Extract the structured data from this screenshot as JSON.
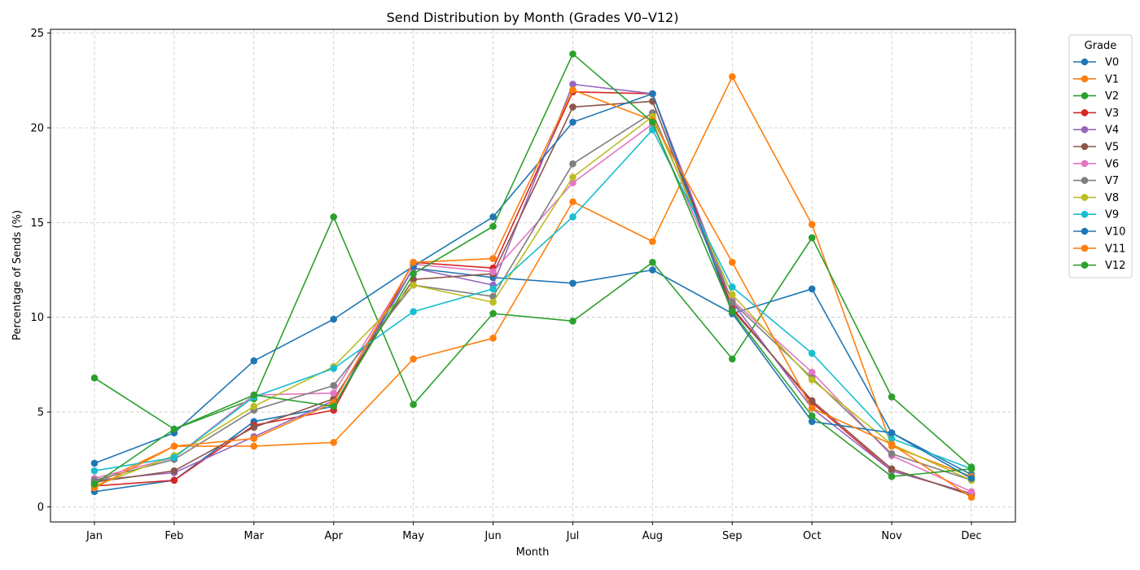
{
  "chart_data": {
    "type": "line",
    "title": "Send Distribution by Month (Grades V0–V12)",
    "xlabel": "Month",
    "ylabel": "Percentage of Sends (%)",
    "categories": [
      "Jan",
      "Feb",
      "Mar",
      "Apr",
      "May",
      "Jun",
      "Jul",
      "Aug",
      "Sep",
      "Oct",
      "Nov",
      "Dec"
    ],
    "ylim": [
      -0.8,
      25.2
    ],
    "yticks": [
      0,
      5,
      10,
      15,
      20,
      25
    ],
    "grid": true,
    "legend": {
      "title": "Grade",
      "placement": "outside-right"
    },
    "series": [
      {
        "name": "V0",
        "color": "#1f77b4",
        "values": [
          0.8,
          1.4,
          4.5,
          5.3,
          12.6,
          12.1,
          11.8,
          12.5,
          10.2,
          11.5,
          3.9,
          1.7
        ]
      },
      {
        "name": "V1",
        "color": "#ff7f0e",
        "values": [
          1.2,
          3.2,
          3.2,
          3.4,
          7.8,
          8.9,
          16.1,
          14.0,
          22.7,
          14.9,
          3.2,
          1.6
        ]
      },
      {
        "name": "V2",
        "color": "#2ca02c",
        "values": [
          6.8,
          4.1,
          5.7,
          15.3,
          5.4,
          10.2,
          9.8,
          12.9,
          7.8,
          14.2,
          5.8,
          2.1
        ]
      },
      {
        "name": "V3",
        "color": "#d62728",
        "values": [
          1.1,
          1.4,
          4.3,
          5.1,
          12.9,
          12.6,
          21.9,
          21.8,
          10.5,
          5.5,
          1.9,
          0.7
        ]
      },
      {
        "name": "V4",
        "color": "#9467bd",
        "values": [
          1.4,
          1.8,
          3.7,
          5.6,
          12.6,
          11.7,
          22.3,
          21.8,
          10.8,
          5.2,
          1.9,
          0.7
        ]
      },
      {
        "name": "V5",
        "color": "#8c564b",
        "values": [
          1.3,
          1.9,
          4.2,
          5.7,
          12.0,
          12.3,
          21.1,
          21.4,
          10.4,
          5.6,
          2.0,
          0.6
        ]
      },
      {
        "name": "V6",
        "color": "#e377c2",
        "values": [
          1.5,
          2.6,
          5.9,
          6.0,
          12.8,
          12.4,
          17.1,
          20.2,
          10.9,
          7.1,
          2.7,
          0.8
        ]
      },
      {
        "name": "V7",
        "color": "#7f7f7f",
        "values": [
          1.4,
          2.5,
          5.1,
          6.4,
          11.7,
          11.1,
          18.1,
          20.8,
          10.8,
          6.8,
          2.8,
          1.4
        ]
      },
      {
        "name": "V8",
        "color": "#bcbd22",
        "values": [
          1.1,
          2.7,
          5.3,
          7.4,
          11.7,
          10.8,
          17.4,
          20.6,
          11.2,
          6.7,
          3.3,
          1.4
        ]
      },
      {
        "name": "V9",
        "color": "#17becf",
        "values": [
          1.9,
          2.6,
          5.8,
          7.3,
          10.3,
          11.5,
          15.3,
          19.9,
          11.6,
          8.1,
          3.6,
          2.0
        ]
      },
      {
        "name": "V10",
        "color": "#1f77b4",
        "values": [
          2.3,
          3.9,
          7.7,
          9.9,
          12.7,
          15.3,
          20.3,
          21.8,
          10.2,
          4.5,
          3.9,
          1.5
        ]
      },
      {
        "name": "V11",
        "color": "#ff7f0e",
        "values": [
          1.0,
          3.2,
          3.6,
          5.5,
          12.9,
          13.1,
          22.0,
          20.4,
          12.9,
          5.2,
          3.3,
          0.5
        ]
      },
      {
        "name": "V12",
        "color": "#2ca02c",
        "values": [
          1.2,
          4.1,
          5.9,
          5.3,
          12.3,
          14.8,
          23.9,
          20.3,
          10.3,
          4.8,
          1.6,
          2.0
        ]
      }
    ]
  }
}
